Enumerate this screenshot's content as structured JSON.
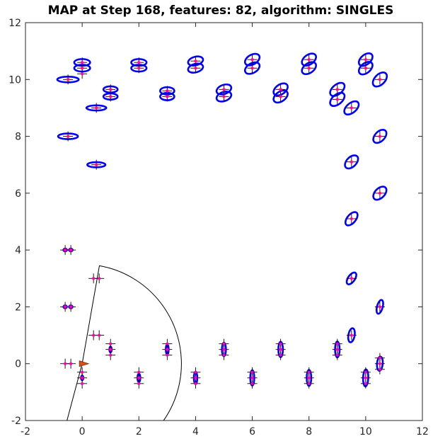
{
  "chart_data": {
    "type": "scatter",
    "title": "MAP at Step 168, features: 82, algorithm: SINGLES",
    "xlim": [
      -2,
      12
    ],
    "ylim": [
      -2,
      12
    ],
    "x_ticks": [
      "-2",
      "0",
      "2",
      "4",
      "6",
      "8",
      "10",
      "12"
    ],
    "y_ticks": [
      "-2",
      "0",
      "2",
      "4",
      "6",
      "8",
      "10",
      "12"
    ],
    "grid": false,
    "colors": {
      "ellipse": "#0000ff",
      "center": "#ff0000",
      "ground_truth": "#000000",
      "robot": "#d95319",
      "sensor_range": "#000000"
    },
    "robot": {
      "x": 0.0,
      "y": 0.0,
      "heading_deg": 0
    },
    "sensor_range": {
      "center_x": 0.0,
      "center_y": 0.0,
      "radius": 3.5,
      "start_deg": -105,
      "end_deg": 80
    },
    "features": [
      {
        "x": -0.5,
        "y": 10.0,
        "rx": 0.38,
        "ry": 0.1,
        "angle": 0
      },
      {
        "x": 0.0,
        "y": 10.6,
        "rx": 0.28,
        "ry": 0.12,
        "angle": 0
      },
      {
        "x": 0.0,
        "y": 10.4,
        "rx": 0.28,
        "ry": 0.12,
        "angle": 0
      },
      {
        "x": 1.0,
        "y": 9.65,
        "rx": 0.25,
        "ry": 0.11,
        "angle": 0
      },
      {
        "x": 1.0,
        "y": 9.4,
        "rx": 0.25,
        "ry": 0.11,
        "angle": 0
      },
      {
        "x": 0.5,
        "y": 9.0,
        "rx": 0.35,
        "ry": 0.09,
        "angle": 0
      },
      {
        "x": -0.5,
        "y": 8.0,
        "rx": 0.35,
        "ry": 0.1,
        "angle": 0
      },
      {
        "x": 0.5,
        "y": 7.0,
        "rx": 0.32,
        "ry": 0.09,
        "angle": 0
      },
      {
        "x": 2.0,
        "y": 10.6,
        "rx": 0.27,
        "ry": 0.12,
        "angle": 0
      },
      {
        "x": 2.0,
        "y": 10.4,
        "rx": 0.27,
        "ry": 0.12,
        "angle": 0
      },
      {
        "x": 3.0,
        "y": 9.6,
        "rx": 0.25,
        "ry": 0.13,
        "angle": 0
      },
      {
        "x": 3.0,
        "y": 9.4,
        "rx": 0.25,
        "ry": 0.13,
        "angle": 0
      },
      {
        "x": 4.0,
        "y": 10.65,
        "rx": 0.27,
        "ry": 0.15,
        "angle": -15
      },
      {
        "x": 4.0,
        "y": 10.4,
        "rx": 0.27,
        "ry": 0.15,
        "angle": -15
      },
      {
        "x": 5.0,
        "y": 9.65,
        "rx": 0.27,
        "ry": 0.16,
        "angle": -20
      },
      {
        "x": 5.0,
        "y": 9.4,
        "rx": 0.27,
        "ry": 0.16,
        "angle": -20
      },
      {
        "x": 6.0,
        "y": 10.7,
        "rx": 0.28,
        "ry": 0.17,
        "angle": -30
      },
      {
        "x": 6.0,
        "y": 10.4,
        "rx": 0.28,
        "ry": 0.17,
        "angle": -30
      },
      {
        "x": 7.0,
        "y": 9.65,
        "rx": 0.28,
        "ry": 0.17,
        "angle": -35
      },
      {
        "x": 7.0,
        "y": 9.4,
        "rx": 0.28,
        "ry": 0.17,
        "angle": -35
      },
      {
        "x": 8.0,
        "y": 10.7,
        "rx": 0.28,
        "ry": 0.17,
        "angle": -35
      },
      {
        "x": 8.0,
        "y": 10.4,
        "rx": 0.28,
        "ry": 0.17,
        "angle": -35
      },
      {
        "x": 9.0,
        "y": 9.65,
        "rx": 0.3,
        "ry": 0.17,
        "angle": -40
      },
      {
        "x": 9.0,
        "y": 9.3,
        "rx": 0.3,
        "ry": 0.17,
        "angle": -40
      },
      {
        "x": 9.5,
        "y": 9.0,
        "rx": 0.3,
        "ry": 0.17,
        "angle": -40
      },
      {
        "x": 10.0,
        "y": 10.7,
        "rx": 0.28,
        "ry": 0.17,
        "angle": -40
      },
      {
        "x": 10.0,
        "y": 10.4,
        "rx": 0.28,
        "ry": 0.17,
        "angle": -40
      },
      {
        "x": 10.5,
        "y": 10.0,
        "rx": 0.3,
        "ry": 0.18,
        "angle": -45
      },
      {
        "x": 10.5,
        "y": 8.0,
        "rx": 0.28,
        "ry": 0.17,
        "angle": -45
      },
      {
        "x": 9.5,
        "y": 7.1,
        "rx": 0.28,
        "ry": 0.17,
        "angle": -45
      },
      {
        "x": 10.5,
        "y": 6.0,
        "rx": 0.28,
        "ry": 0.17,
        "angle": -45
      },
      {
        "x": 9.5,
        "y": 5.1,
        "rx": 0.28,
        "ry": 0.15,
        "angle": -50
      },
      {
        "x": 9.5,
        "y": 3.0,
        "rx": 0.24,
        "ry": 0.12,
        "angle": -55
      },
      {
        "x": 10.5,
        "y": 2.0,
        "rx": 0.25,
        "ry": 0.1,
        "angle": -75
      },
      {
        "x": 9.5,
        "y": 1.0,
        "rx": 0.25,
        "ry": 0.11,
        "angle": -80
      },
      {
        "x": 10.5,
        "y": 0.0,
        "rx": 0.25,
        "ry": 0.1,
        "angle": -85
      },
      {
        "x": 10.0,
        "y": -0.5,
        "rx": 0.3,
        "ry": 0.09,
        "angle": -88
      },
      {
        "x": 9.0,
        "y": 0.5,
        "rx": 0.28,
        "ry": 0.08,
        "angle": -90
      },
      {
        "x": 8.0,
        "y": -0.5,
        "rx": 0.28,
        "ry": 0.08,
        "angle": -90
      },
      {
        "x": 7.0,
        "y": 0.5,
        "rx": 0.27,
        "ry": 0.08,
        "angle": -90
      },
      {
        "x": 6.0,
        "y": -0.5,
        "rx": 0.27,
        "ry": 0.07,
        "angle": -90
      },
      {
        "x": 5.0,
        "y": 0.5,
        "rx": 0.24,
        "ry": 0.07,
        "angle": -90
      },
      {
        "x": 4.0,
        "y": -0.5,
        "rx": 0.22,
        "ry": 0.06,
        "angle": -90
      },
      {
        "x": 3.0,
        "y": 0.5,
        "rx": 0.18,
        "ry": 0.05,
        "angle": -90
      },
      {
        "x": 2.0,
        "y": -0.5,
        "rx": 0.15,
        "ry": 0.05,
        "angle": -90
      },
      {
        "x": 1.0,
        "y": 0.5,
        "rx": 0.1,
        "ry": 0.04,
        "angle": -90
      },
      {
        "x": 0.0,
        "y": -0.5,
        "rx": 0.08,
        "ry": 0.04,
        "angle": -90
      },
      {
        "x": -0.6,
        "y": 4.0,
        "rx": 0.06,
        "ry": 0.05,
        "angle": 0
      },
      {
        "x": -0.4,
        "y": 4.0,
        "rx": 0.06,
        "ry": 0.05,
        "angle": 0
      },
      {
        "x": -0.6,
        "y": 2.0,
        "rx": 0.06,
        "ry": 0.05,
        "angle": 0
      },
      {
        "x": -0.4,
        "y": 2.0,
        "rx": 0.06,
        "ry": 0.05,
        "angle": 0
      }
    ],
    "ground_truth": [
      {
        "x": -0.5,
        "y": 10.0
      },
      {
        "x": 0.0,
        "y": 10.6
      },
      {
        "x": 0.0,
        "y": 10.4
      },
      {
        "x": 1.0,
        "y": 9.65
      },
      {
        "x": 1.0,
        "y": 9.4
      },
      {
        "x": 0.5,
        "y": 9.0
      },
      {
        "x": -0.5,
        "y": 8.0
      },
      {
        "x": 0.5,
        "y": 7.0
      },
      {
        "x": 2.0,
        "y": 10.6
      },
      {
        "x": 2.0,
        "y": 10.4
      },
      {
        "x": 3.0,
        "y": 9.6
      },
      {
        "x": 3.0,
        "y": 9.4
      },
      {
        "x": 4.0,
        "y": 10.65
      },
      {
        "x": 4.0,
        "y": 10.4
      },
      {
        "x": 5.0,
        "y": 9.65
      },
      {
        "x": 5.0,
        "y": 9.4
      },
      {
        "x": 6.0,
        "y": 10.7
      },
      {
        "x": 6.0,
        "y": 10.4
      },
      {
        "x": 7.0,
        "y": 9.65
      },
      {
        "x": 7.0,
        "y": 9.4
      },
      {
        "x": 8.0,
        "y": 10.7
      },
      {
        "x": 8.0,
        "y": 10.4
      },
      {
        "x": 9.0,
        "y": 9.65
      },
      {
        "x": 9.0,
        "y": 9.3
      },
      {
        "x": 9.5,
        "y": 9.0
      },
      {
        "x": 10.0,
        "y": 10.7
      },
      {
        "x": 10.0,
        "y": 10.4
      },
      {
        "x": 10.5,
        "y": 10.0
      },
      {
        "x": 10.5,
        "y": 8.0
      },
      {
        "x": 9.5,
        "y": 7.1
      },
      {
        "x": 10.5,
        "y": 6.0
      },
      {
        "x": 9.5,
        "y": 5.1
      },
      {
        "x": 9.5,
        "y": 3.0
      },
      {
        "x": 10.5,
        "y": 2.0
      },
      {
        "x": 9.5,
        "y": 1.0
      },
      {
        "x": 10.5,
        "y": 0.0
      },
      {
        "x": 10.0,
        "y": -0.5
      },
      {
        "x": 9.0,
        "y": 0.5
      },
      {
        "x": 8.0,
        "y": -0.5
      },
      {
        "x": 7.0,
        "y": 0.5
      },
      {
        "x": 6.0,
        "y": -0.5
      },
      {
        "x": 5.0,
        "y": 0.5
      },
      {
        "x": 4.0,
        "y": -0.5
      },
      {
        "x": 3.0,
        "y": 0.5
      },
      {
        "x": 2.0,
        "y": -0.5
      },
      {
        "x": 1.0,
        "y": 0.5
      },
      {
        "x": 0.0,
        "y": -0.5
      },
      {
        "x": -0.6,
        "y": 4.0
      },
      {
        "x": -0.4,
        "y": 4.0
      },
      {
        "x": -0.6,
        "y": 2.0
      },
      {
        "x": -0.4,
        "y": 2.0
      },
      {
        "x": -0.6,
        "y": 0.0
      },
      {
        "x": -0.4,
        "y": 0.0
      },
      {
        "x": 0.4,
        "y": 3.0
      },
      {
        "x": 0.6,
        "y": 3.0
      },
      {
        "x": 0.4,
        "y": 1.0
      },
      {
        "x": 0.6,
        "y": 1.0
      },
      {
        "x": 1.0,
        "y": 0.3
      },
      {
        "x": 3.0,
        "y": 0.3
      },
      {
        "x": 5.0,
        "y": 0.3
      },
      {
        "x": 7.0,
        "y": 0.3
      },
      {
        "x": 9.0,
        "y": 0.3
      },
      {
        "x": 0.0,
        "y": -0.3
      },
      {
        "x": 2.0,
        "y": -0.3
      },
      {
        "x": 4.0,
        "y": -0.3
      },
      {
        "x": 6.0,
        "y": -0.3
      },
      {
        "x": 8.0,
        "y": -0.3
      },
      {
        "x": 10.0,
        "y": -0.3
      },
      {
        "x": 0.0,
        "y": -0.7
      },
      {
        "x": 2.0,
        "y": -0.7
      },
      {
        "x": 4.0,
        "y": -0.7
      },
      {
        "x": 6.0,
        "y": -0.7
      },
      {
        "x": 8.0,
        "y": -0.7
      },
      {
        "x": 10.0,
        "y": -0.7
      },
      {
        "x": 1.0,
        "y": 0.7
      },
      {
        "x": 3.0,
        "y": 0.7
      },
      {
        "x": 5.0,
        "y": 0.7
      },
      {
        "x": 7.0,
        "y": 0.7
      },
      {
        "x": 9.0,
        "y": 0.7
      },
      {
        "x": 0.0,
        "y": 10.2
      },
      {
        "x": 10.5,
        "y": 0.2
      },
      {
        "x": 10.5,
        "y": -0.2
      }
    ]
  }
}
